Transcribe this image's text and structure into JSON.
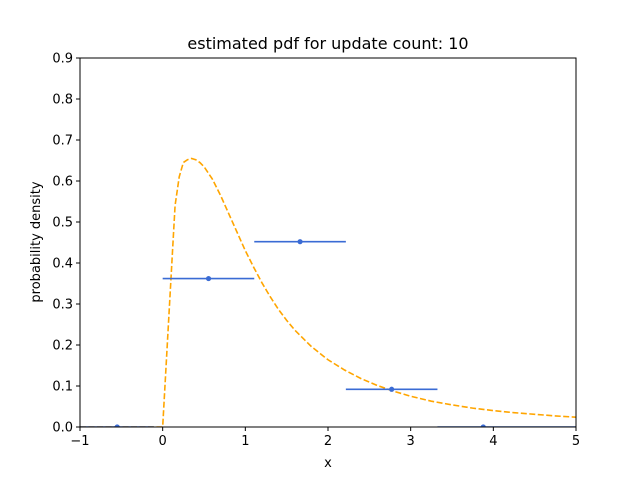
{
  "chart_data": {
    "type": "line",
    "title": "estimated pdf for update count: 10",
    "xlabel": "x",
    "ylabel": "probability density",
    "xlim": [
      -1,
      5
    ],
    "ylim": [
      0,
      0.9
    ],
    "xticks": [
      "−1",
      "0",
      "1",
      "2",
      "3",
      "4",
      "5"
    ],
    "yticks": [
      "0.0",
      "0.1",
      "0.2",
      "0.3",
      "0.4",
      "0.5",
      "0.6",
      "0.7",
      "0.8",
      "0.9"
    ],
    "grid": false,
    "series": [
      {
        "style": "dashed",
        "color": "#ffa500",
        "x": [
          -1.0,
          -0.5,
          0.0,
          0.05,
          0.1,
          0.15,
          0.2,
          0.25,
          0.3,
          0.35,
          0.4,
          0.45,
          0.5,
          0.6,
          0.7,
          0.8,
          0.9,
          1.0,
          1.1,
          1.2,
          1.3,
          1.4,
          1.5,
          1.6,
          1.8,
          2.0,
          2.2,
          2.4,
          2.6,
          2.8,
          3.0,
          3.25,
          3.5,
          3.75,
          4.0,
          4.25,
          4.5,
          4.75,
          5.0
        ],
        "y": [
          0.0,
          0.0,
          0.0,
          0.18,
          0.36,
          0.54,
          0.61,
          0.645,
          0.652,
          0.655,
          0.652,
          0.645,
          0.635,
          0.605,
          0.565,
          0.52,
          0.475,
          0.43,
          0.39,
          0.352,
          0.318,
          0.287,
          0.26,
          0.236,
          0.196,
          0.164,
          0.139,
          0.118,
          0.101,
          0.087,
          0.075,
          0.063,
          0.054,
          0.046,
          0.04,
          0.035,
          0.031,
          0.027,
          0.024
        ]
      },
      {
        "style": "bins",
        "color": "#3a6bd4",
        "bins": [
          {
            "x0": -1.0,
            "x1": -0.108,
            "xc": -0.55,
            "y": 0.0
          },
          {
            "x0": 0.0,
            "x1": 1.108,
            "xc": 0.555,
            "y": 0.362
          },
          {
            "x0": 1.108,
            "x1": 2.216,
            "xc": 1.662,
            "y": 0.452
          },
          {
            "x0": 2.216,
            "x1": 3.324,
            "xc": 2.77,
            "y": 0.092
          },
          {
            "x0": 3.324,
            "x1": 5.0,
            "xc": 3.878,
            "y": 0.0
          }
        ]
      }
    ]
  }
}
